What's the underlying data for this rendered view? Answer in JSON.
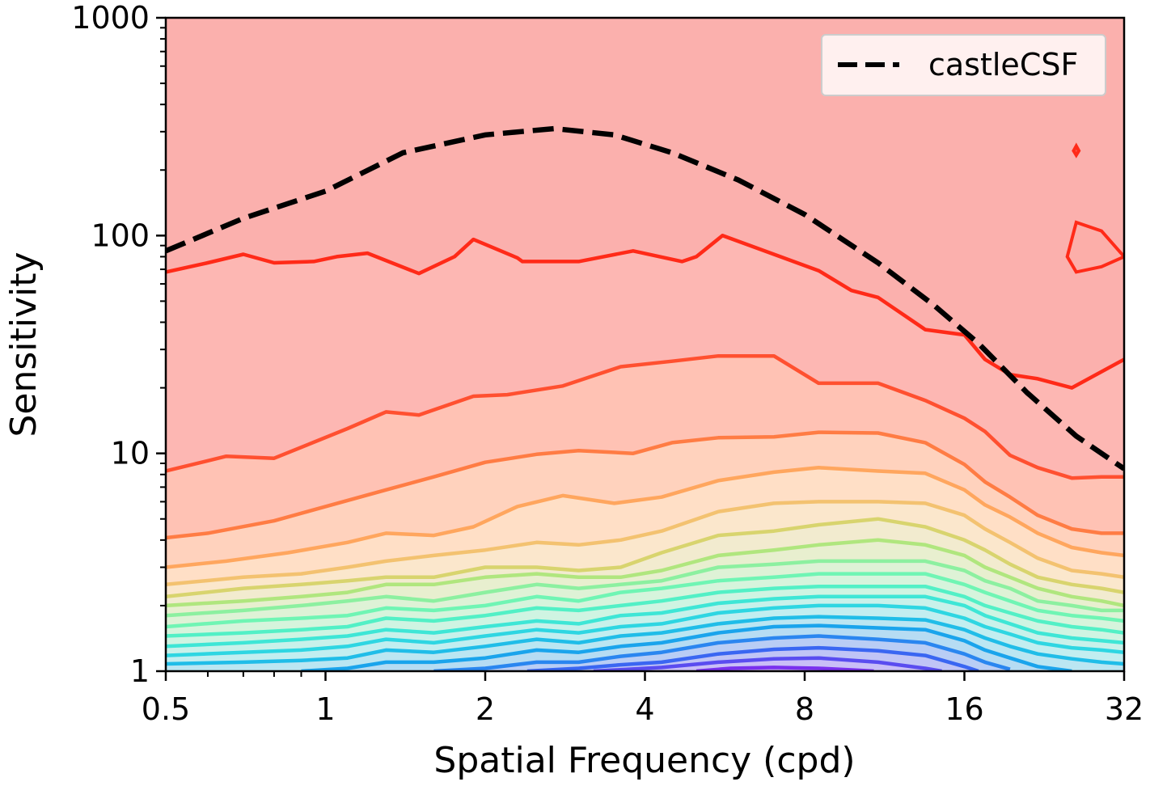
{
  "chart_data": {
    "type": "contour",
    "xlabel": "Spatial Frequency (cpd)",
    "ylabel": "Sensitivity",
    "x_scale": "log2",
    "y_scale": "log10",
    "xlim": [
      0.5,
      32
    ],
    "ylim": [
      1,
      1000
    ],
    "x_ticks": [
      0.5,
      1,
      2,
      4,
      8,
      16,
      32
    ],
    "x_tick_labels": [
      "0.5",
      "1",
      "2",
      "4",
      "8",
      "16",
      "32"
    ],
    "y_ticks": [
      1,
      10,
      100,
      1000
    ],
    "y_tick_labels": [
      "1",
      "10",
      "100",
      "1000"
    ],
    "legend": {
      "placement": "top-right",
      "entries": [
        {
          "label": "castleCSF",
          "style": "dashed",
          "color": "#000000"
        }
      ]
    },
    "series": [
      {
        "name": "castleCSF",
        "style": "dashed",
        "color": "#000000",
        "x": [
          0.5,
          0.7,
          1.0,
          1.4,
          2.0,
          2.7,
          3.5,
          4.5,
          6.0,
          8.0,
          11.0,
          14.0,
          17.0,
          21.0,
          26.0,
          32.0
        ],
        "y": [
          85,
          120,
          160,
          240,
          290,
          310,
          290,
          240,
          180,
          125,
          75,
          48,
          32,
          19,
          12,
          8.5
        ]
      }
    ],
    "contours": [
      {
        "color": "#ff2a18",
        "fill": "#fdb7b3",
        "x": [
          0.5,
          0.6,
          0.7,
          0.8,
          0.95,
          1.05,
          1.2,
          1.5,
          1.75,
          1.9,
          2.3,
          2.35,
          3.0,
          3.8,
          4.7,
          5.0,
          5.6,
          7.0,
          8.5,
          9.8,
          11.0,
          13.5,
          16.0,
          17.5,
          19.5,
          22.0,
          25.5,
          32.0
        ],
        "y": [
          68,
          75,
          82,
          75,
          76,
          80,
          83,
          67,
          80,
          96,
          79,
          76,
          76,
          85,
          76,
          80,
          100,
          82,
          69,
          56,
          52,
          37,
          35,
          27,
          23,
          22,
          20,
          27
        ]
      },
      {
        "color": "#ff5030",
        "fill": "#ffc2b4",
        "x": [
          0.5,
          0.65,
          0.8,
          1.1,
          1.3,
          1.5,
          1.9,
          2.2,
          2.8,
          3.6,
          4.5,
          5.5,
          7.0,
          8.5,
          11.0,
          13.5,
          16.0,
          17.5,
          19.5,
          22.0,
          25.5,
          29.0,
          32.0
        ],
        "y": [
          8.3,
          9.7,
          9.5,
          13,
          15.5,
          15,
          18.3,
          18.6,
          20.4,
          25,
          26.5,
          28,
          28,
          21,
          21,
          17.5,
          14.5,
          12.6,
          9.8,
          8.6,
          7.7,
          7.8,
          7.8
        ]
      },
      {
        "color": "#ff7c44",
        "fill": "#ffd2bd",
        "x": [
          0.5,
          0.6,
          0.8,
          1.0,
          1.3,
          1.6,
          2.0,
          2.5,
          3.0,
          3.8,
          4.5,
          5.5,
          7.0,
          8.5,
          11.0,
          13.5,
          16.0,
          17.5,
          19.5,
          22.0,
          25.5,
          29.0,
          32.0
        ],
        "y": [
          4.1,
          4.3,
          4.9,
          5.7,
          6.8,
          7.8,
          9.1,
          9.9,
          10.3,
          10,
          11.2,
          11.8,
          11.9,
          12.5,
          12.4,
          11.2,
          8.9,
          7.4,
          6.3,
          5.2,
          4.5,
          4.3,
          4.3
        ]
      },
      {
        "color": "#ffa65e",
        "fill": "#ffdfc6",
        "x": [
          0.5,
          0.65,
          0.85,
          1.1,
          1.3,
          1.6,
          1.9,
          2.3,
          2.8,
          3.5,
          4.3,
          5.5,
          7.0,
          8.5,
          11.0,
          13.5,
          16.0,
          17.5,
          19.5,
          22.0,
          25.5,
          29.0,
          32.0
        ],
        "y": [
          3.0,
          3.2,
          3.5,
          3.9,
          4.3,
          4.2,
          4.6,
          5.7,
          6.4,
          5.9,
          6.3,
          7.5,
          8.2,
          8.6,
          8.3,
          8.1,
          6.8,
          5.8,
          5.1,
          4.3,
          3.7,
          3.5,
          3.4
        ]
      },
      {
        "color": "#f3c270",
        "fill": "#fbe7cc",
        "x": [
          0.5,
          0.7,
          0.9,
          1.1,
          1.3,
          1.6,
          2.0,
          2.5,
          3.0,
          3.6,
          4.3,
          5.5,
          7.0,
          8.5,
          11.0,
          13.5,
          16.0,
          17.5,
          19.5,
          22.0,
          25.5,
          29.0,
          32.0
        ],
        "y": [
          2.5,
          2.7,
          2.8,
          3.0,
          3.2,
          3.4,
          3.6,
          3.9,
          3.8,
          4.0,
          4.4,
          5.4,
          5.9,
          6.0,
          6.0,
          5.9,
          5.2,
          4.5,
          3.9,
          3.3,
          2.9,
          2.8,
          2.7
        ]
      },
      {
        "color": "#d8d46e",
        "fill": "#f2ebcf",
        "x": [
          0.5,
          0.7,
          0.9,
          1.1,
          1.3,
          1.6,
          2.0,
          2.5,
          3.0,
          3.6,
          4.3,
          5.5,
          7.0,
          8.5,
          11.0,
          13.5,
          16.0,
          17.5,
          19.5,
          22.0,
          25.5,
          29.0,
          32.0
        ],
        "y": [
          2.2,
          2.4,
          2.5,
          2.6,
          2.7,
          2.7,
          3.0,
          3.0,
          2.9,
          3.0,
          3.5,
          4.2,
          4.4,
          4.7,
          5.0,
          4.6,
          4.0,
          3.6,
          3.1,
          2.7,
          2.5,
          2.4,
          2.3
        ]
      },
      {
        "color": "#b0e67e",
        "fill": "#e8efcf",
        "x": [
          0.5,
          0.7,
          0.9,
          1.1,
          1.3,
          1.6,
          2.0,
          2.5,
          3.0,
          3.6,
          4.3,
          5.5,
          7.0,
          8.5,
          11.0,
          13.5,
          16.0,
          17.5,
          19.5,
          22.0,
          25.5,
          29.0,
          32.0
        ],
        "y": [
          2.0,
          2.1,
          2.2,
          2.3,
          2.5,
          2.5,
          2.7,
          2.8,
          2.7,
          2.7,
          2.9,
          3.4,
          3.6,
          3.8,
          4.0,
          3.8,
          3.4,
          3.0,
          2.7,
          2.4,
          2.2,
          2.1,
          2.0
        ]
      },
      {
        "color": "#8cf0a0",
        "fill": "#def2d6",
        "x": [
          0.5,
          0.7,
          0.9,
          1.1,
          1.3,
          1.6,
          2.0,
          2.5,
          3.0,
          3.6,
          4.3,
          5.5,
          7.0,
          8.5,
          11.0,
          13.5,
          16.0,
          17.5,
          19.5,
          22.0,
          25.5,
          29.0,
          32.0
        ],
        "y": [
          1.8,
          1.9,
          2.0,
          2.1,
          2.2,
          2.1,
          2.3,
          2.5,
          2.4,
          2.5,
          2.6,
          3.0,
          3.1,
          3.2,
          3.2,
          3.2,
          2.9,
          2.6,
          2.4,
          2.1,
          2.0,
          1.9,
          1.9
        ]
      },
      {
        "color": "#6ff5b4",
        "fill": "#d6f4dc",
        "x": [
          0.5,
          0.7,
          0.9,
          1.1,
          1.3,
          1.6,
          2.0,
          2.5,
          3.0,
          3.6,
          4.3,
          5.5,
          7.0,
          8.5,
          11.0,
          13.5,
          16.0,
          17.5,
          19.5,
          22.0,
          25.5,
          29.0,
          32.0
        ],
        "y": [
          1.6,
          1.7,
          1.75,
          1.8,
          1.95,
          1.9,
          2.0,
          2.2,
          2.1,
          2.3,
          2.4,
          2.6,
          2.7,
          2.8,
          2.8,
          2.8,
          2.5,
          2.3,
          2.1,
          1.9,
          1.8,
          1.75,
          1.7
        ]
      },
      {
        "color": "#52f0c6",
        "fill": "#cff4e2",
        "x": [
          0.5,
          0.7,
          0.9,
          1.1,
          1.3,
          1.6,
          2.0,
          2.5,
          3.0,
          3.6,
          4.3,
          5.5,
          7.0,
          8.5,
          11.0,
          13.5,
          16.0,
          17.5,
          19.5,
          22.0,
          25.5,
          29.0,
          32.0
        ],
        "y": [
          1.45,
          1.5,
          1.55,
          1.6,
          1.75,
          1.7,
          1.8,
          1.95,
          1.9,
          2.0,
          2.1,
          2.3,
          2.4,
          2.45,
          2.45,
          2.45,
          2.2,
          2.0,
          1.85,
          1.7,
          1.6,
          1.55,
          1.5
        ]
      },
      {
        "color": "#3ee6d6",
        "fill": "#c8f1ea",
        "x": [
          0.5,
          0.7,
          0.9,
          1.1,
          1.3,
          1.6,
          2.0,
          2.5,
          3.0,
          3.6,
          4.3,
          5.5,
          7.0,
          8.5,
          11.0,
          13.5,
          16.0,
          17.5,
          19.5,
          22.0,
          25.5,
          29.0,
          32.0
        ],
        "y": [
          1.3,
          1.35,
          1.4,
          1.45,
          1.55,
          1.5,
          1.6,
          1.7,
          1.65,
          1.8,
          1.85,
          2.05,
          2.15,
          2.2,
          2.2,
          2.2,
          2.0,
          1.8,
          1.65,
          1.5,
          1.42,
          1.38,
          1.35
        ]
      },
      {
        "color": "#2ed6e2",
        "fill": "#c2eef0",
        "x": [
          0.5,
          0.7,
          0.9,
          1.1,
          1.3,
          1.6,
          2.0,
          2.5,
          3.0,
          3.6,
          4.3,
          5.5,
          7.0,
          8.5,
          11.0,
          13.5,
          16.0,
          17.5,
          19.5,
          22.0,
          25.5,
          29.0,
          32.0
        ],
        "y": [
          1.18,
          1.22,
          1.25,
          1.3,
          1.4,
          1.35,
          1.45,
          1.55,
          1.5,
          1.6,
          1.65,
          1.85,
          1.95,
          2.0,
          2.0,
          1.95,
          1.75,
          1.6,
          1.48,
          1.35,
          1.28,
          1.25,
          1.22
        ]
      },
      {
        "color": "#20bde8",
        "fill": "#bbe6f2",
        "x": [
          0.5,
          0.7,
          0.9,
          1.1,
          1.3,
          1.6,
          2.0,
          2.5,
          3.0,
          3.6,
          4.3,
          5.5,
          7.0,
          8.5,
          11.0,
          13.5,
          16.0,
          17.5,
          19.5,
          22.0,
          25.5,
          29.0,
          32.0
        ],
        "y": [
          1.08,
          1.1,
          1.12,
          1.15,
          1.25,
          1.22,
          1.3,
          1.4,
          1.35,
          1.45,
          1.5,
          1.65,
          1.75,
          1.78,
          1.75,
          1.72,
          1.55,
          1.42,
          1.3,
          1.2,
          1.14,
          1.1,
          1.08
        ]
      },
      {
        "color": "#1aa4ec",
        "fill": "#b6dcf3",
        "x": [
          0.9,
          1.1,
          1.3,
          1.6,
          2.0,
          2.5,
          3.0,
          3.6,
          4.3,
          5.5,
          7.0,
          8.5,
          11.0,
          13.5,
          16.0,
          17.5,
          19.5,
          22.0,
          25.5
        ],
        "y": [
          1.0,
          1.03,
          1.1,
          1.1,
          1.15,
          1.25,
          1.22,
          1.3,
          1.35,
          1.5,
          1.6,
          1.62,
          1.58,
          1.55,
          1.38,
          1.25,
          1.15,
          1.05,
          1.0
        ]
      },
      {
        "color": "#2a86f0",
        "fill": "#b9cdf5",
        "x": [
          1.6,
          2.0,
          2.5,
          3.0,
          3.6,
          4.3,
          5.5,
          7.0,
          8.5,
          11.0,
          13.5,
          16.0,
          17.5,
          19.5
        ],
        "y": [
          1.0,
          1.03,
          1.1,
          1.1,
          1.17,
          1.22,
          1.35,
          1.42,
          1.45,
          1.4,
          1.35,
          1.2,
          1.1,
          1.02
        ]
      },
      {
        "color": "#3a66f2",
        "fill": "#c0c4f6",
        "x": [
          2.4,
          3.0,
          3.6,
          4.3,
          5.5,
          7.0,
          8.5,
          11.0,
          13.5,
          16.0,
          17.0
        ],
        "y": [
          1.0,
          1.03,
          1.07,
          1.1,
          1.2,
          1.26,
          1.28,
          1.24,
          1.18,
          1.05,
          1.0
        ]
      },
      {
        "color": "#5a4cf0",
        "fill": "#c9bef7",
        "x": [
          3.2,
          4.3,
          5.5,
          7.0,
          8.5,
          11.0,
          13.5,
          14.5
        ],
        "y": [
          1.0,
          1.04,
          1.1,
          1.14,
          1.15,
          1.1,
          1.03,
          1.0
        ]
      },
      {
        "color": "#7a30ee",
        "fill": "#d6bdf7",
        "x": [
          5.0,
          5.8,
          7.0,
          8.5,
          10.0,
          10.8
        ],
        "y": [
          1.0,
          1.03,
          1.04,
          1.03,
          1.01,
          1.0
        ]
      }
    ],
    "islands": [
      {
        "color": "#ff2a18",
        "fill": "#fcaea9",
        "x": [
          25.0,
          26.0,
          29.0,
          32.0,
          29.0,
          26.0,
          25.0
        ],
        "y": [
          80,
          115,
          105,
          80,
          72,
          68,
          80
        ]
      },
      {
        "color": "#ff2a18",
        "fill": "#ff5a4c",
        "x": [
          25.7,
          26.0,
          26.3,
          26.0,
          25.7
        ],
        "y": [
          245,
          258,
          245,
          234,
          245
        ]
      }
    ]
  }
}
